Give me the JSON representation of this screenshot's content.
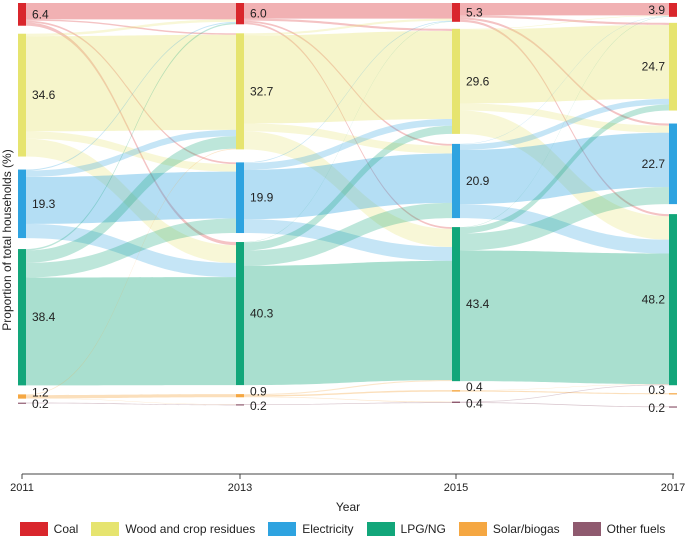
{
  "chart_data": {
    "type": "sankey",
    "xlabel": "Year",
    "ylabel": "Proportion of total households (%)",
    "years": [
      "2011",
      "2013",
      "2015",
      "2017"
    ],
    "categories": [
      {
        "name": "Coal",
        "color": "#d9262c",
        "values": [
          6.4,
          6.0,
          5.3,
          3.9
        ]
      },
      {
        "name": "Wood and crop residues",
        "color": "#e6e46f",
        "values": [
          34.6,
          32.7,
          29.6,
          24.7
        ]
      },
      {
        "name": "Electricity",
        "color": "#2ea3e0",
        "values": [
          19.3,
          19.9,
          20.9,
          22.7
        ]
      },
      {
        "name": "LPG/NG",
        "color": "#12a67a",
        "values": [
          38.4,
          40.3,
          43.4,
          48.2
        ]
      },
      {
        "name": "Solar/biogas",
        "color": "#f5a742",
        "values": [
          1.2,
          0.9,
          0.4,
          0.3
        ]
      },
      {
        "name": "Other fuels",
        "color": "#8f5a6f",
        "values": [
          0.2,
          0.2,
          0.4,
          0.2
        ]
      }
    ],
    "flows": [
      {
        "period": 0,
        "transitions": [
          [
            4.6,
            0.4,
            0.5,
            0.9,
            0,
            0
          ],
          [
            0.7,
            26.8,
            2.1,
            5.0,
            0,
            0
          ],
          [
            0.3,
            1.8,
            13.2,
            4.0,
            0,
            0
          ],
          [
            0.4,
            3.5,
            4.1,
            30.4,
            0,
            0
          ],
          [
            0,
            0.2,
            0,
            0,
            0.9,
            0.1
          ],
          [
            0,
            0,
            0,
            0,
            0,
            0.2
          ]
        ]
      },
      {
        "period": 1,
        "transitions": [
          [
            4.4,
            0.6,
            0.5,
            0.5,
            0,
            0
          ],
          [
            0.6,
            24.8,
            2.2,
            5.1,
            0,
            0
          ],
          [
            0.2,
            1.9,
            13.9,
            3.9,
            0,
            0
          ],
          [
            0.1,
            2.3,
            4.3,
            33.6,
            0,
            0
          ],
          [
            0,
            0,
            0,
            0.3,
            0.4,
            0.2
          ],
          [
            0,
            0,
            0,
            0,
            0,
            0.2
          ]
        ]
      },
      {
        "period": 2,
        "transitions": [
          [
            3.5,
            0.6,
            0.6,
            0.6,
            0,
            0
          ],
          [
            0.2,
            20.8,
            2.0,
            6.6,
            0,
            0
          ],
          [
            0.1,
            1.6,
            15.3,
            3.9,
            0,
            0
          ],
          [
            0.1,
            1.7,
            4.8,
            36.8,
            0,
            0
          ],
          [
            0,
            0,
            0,
            0.1,
            0.3,
            0
          ],
          [
            0,
            0,
            0,
            0.2,
            0,
            0.2
          ]
        ]
      }
    ]
  }
}
